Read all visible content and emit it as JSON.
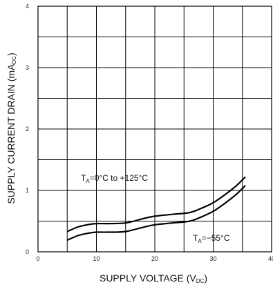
{
  "chart_data": {
    "type": "line",
    "xlabel": {
      "main": "SUPPLY VOLTAGE (V",
      "sub": "DC",
      "end": ")"
    },
    "ylabel": {
      "main": "SUPPLY CURRENT DRAIN (mA",
      "sub": "DC",
      "end": ")"
    },
    "xlim": [
      0,
      40
    ],
    "ylim": [
      0,
      4
    ],
    "x_ticks": [
      "0",
      "10",
      "20",
      "30",
      "40"
    ],
    "y_ticks": [
      "0",
      "1",
      "2",
      "3",
      "4"
    ],
    "x_gridlines": [
      0,
      5,
      10,
      15,
      20,
      25,
      30,
      35,
      40
    ],
    "y_gridlines": [
      0,
      0.5,
      1,
      1.5,
      2,
      2.5,
      3,
      3.5,
      4
    ],
    "grid": true,
    "series": [
      {
        "x": [
          5,
          7,
          9,
          10,
          12,
          15,
          18,
          20,
          23,
          26,
          28,
          30,
          32,
          34,
          35.5
        ],
        "y": [
          0.33,
          0.41,
          0.45,
          0.46,
          0.46,
          0.47,
          0.54,
          0.58,
          0.61,
          0.64,
          0.71,
          0.8,
          0.93,
          1.08,
          1.22
        ]
      },
      {
        "x": [
          5,
          7,
          9,
          10,
          12,
          15,
          18,
          20,
          23,
          26,
          28,
          30,
          32,
          34,
          35.5
        ],
        "y": [
          0.19,
          0.27,
          0.31,
          0.32,
          0.32,
          0.33,
          0.4,
          0.44,
          0.47,
          0.5,
          0.57,
          0.66,
          0.79,
          0.94,
          1.08
        ]
      }
    ],
    "annotations": [
      {
        "main": "T",
        "sub": "A",
        "text": "=0°C to +125°C"
      },
      {
        "main": "T",
        "sub": "A",
        "text": "=−55°C"
      }
    ]
  }
}
